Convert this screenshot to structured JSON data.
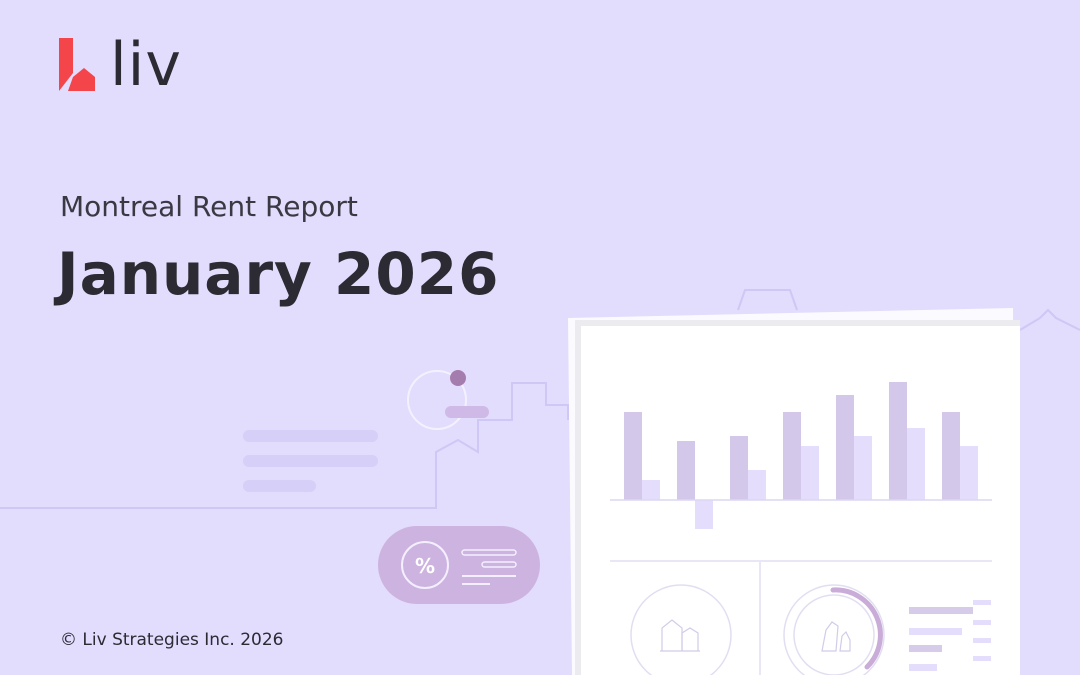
{
  "brand": {
    "name": "liv",
    "logo_color": "#f4454a"
  },
  "header": {
    "subtitle": "Montreal Rent Report",
    "title": "January 2026"
  },
  "footer": {
    "copyright": "© Liv Strategies Inc. 2026"
  },
  "illustration": {
    "badge_symbol": "%",
    "icons": [
      "houses-icon",
      "pets-icon"
    ]
  },
  "colors": {
    "background": "#e2dcfd",
    "text": "#2c2a33",
    "accent": "#a57cae"
  }
}
